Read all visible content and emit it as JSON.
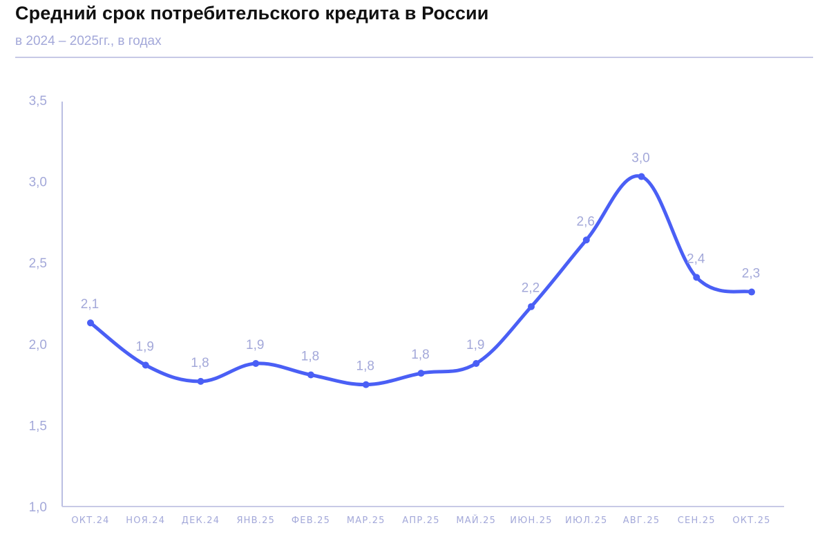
{
  "header": {
    "title": "Средний срок потребительского кредита в России",
    "subtitle": "в 2024 – 2025гг., в годах"
  },
  "colors": {
    "line": "#4a5ff5",
    "axis": "#a3a8d9",
    "text": "#a3a8d9",
    "divider": "#c7c9e6"
  },
  "chart_data": {
    "type": "line",
    "title": "Средний срок потребительского кредита в России",
    "subtitle": "в 2024 – 2025гг., в годах",
    "xlabel": "",
    "ylabel": "",
    "ylim": [
      1.0,
      3.5
    ],
    "yticks": [
      "1,0",
      "1,5",
      "2,0",
      "2,5",
      "3,0",
      "3,5"
    ],
    "grid": false,
    "legend": null,
    "categories": [
      "ОКТ.24",
      "НОЯ.24",
      "ДЕК.24",
      "ЯНВ.25",
      "ФЕВ.25",
      "МАР.25",
      "АПР.25",
      "МАЙ.25",
      "ИЮН.25",
      "ИЮЛ.25",
      "АВГ.25",
      "СЕН.25",
      "ОКТ.25"
    ],
    "values": [
      2.13,
      1.87,
      1.77,
      1.88,
      1.81,
      1.75,
      1.82,
      1.88,
      2.23,
      2.64,
      3.03,
      2.41,
      2.32
    ],
    "data_labels": [
      "2,1",
      "1,9",
      "1,8",
      "1,9",
      "1,8",
      "1,8",
      "1,8",
      "1,9",
      "2,2",
      "2,6",
      "3,0",
      "2,4",
      "2,3"
    ]
  }
}
